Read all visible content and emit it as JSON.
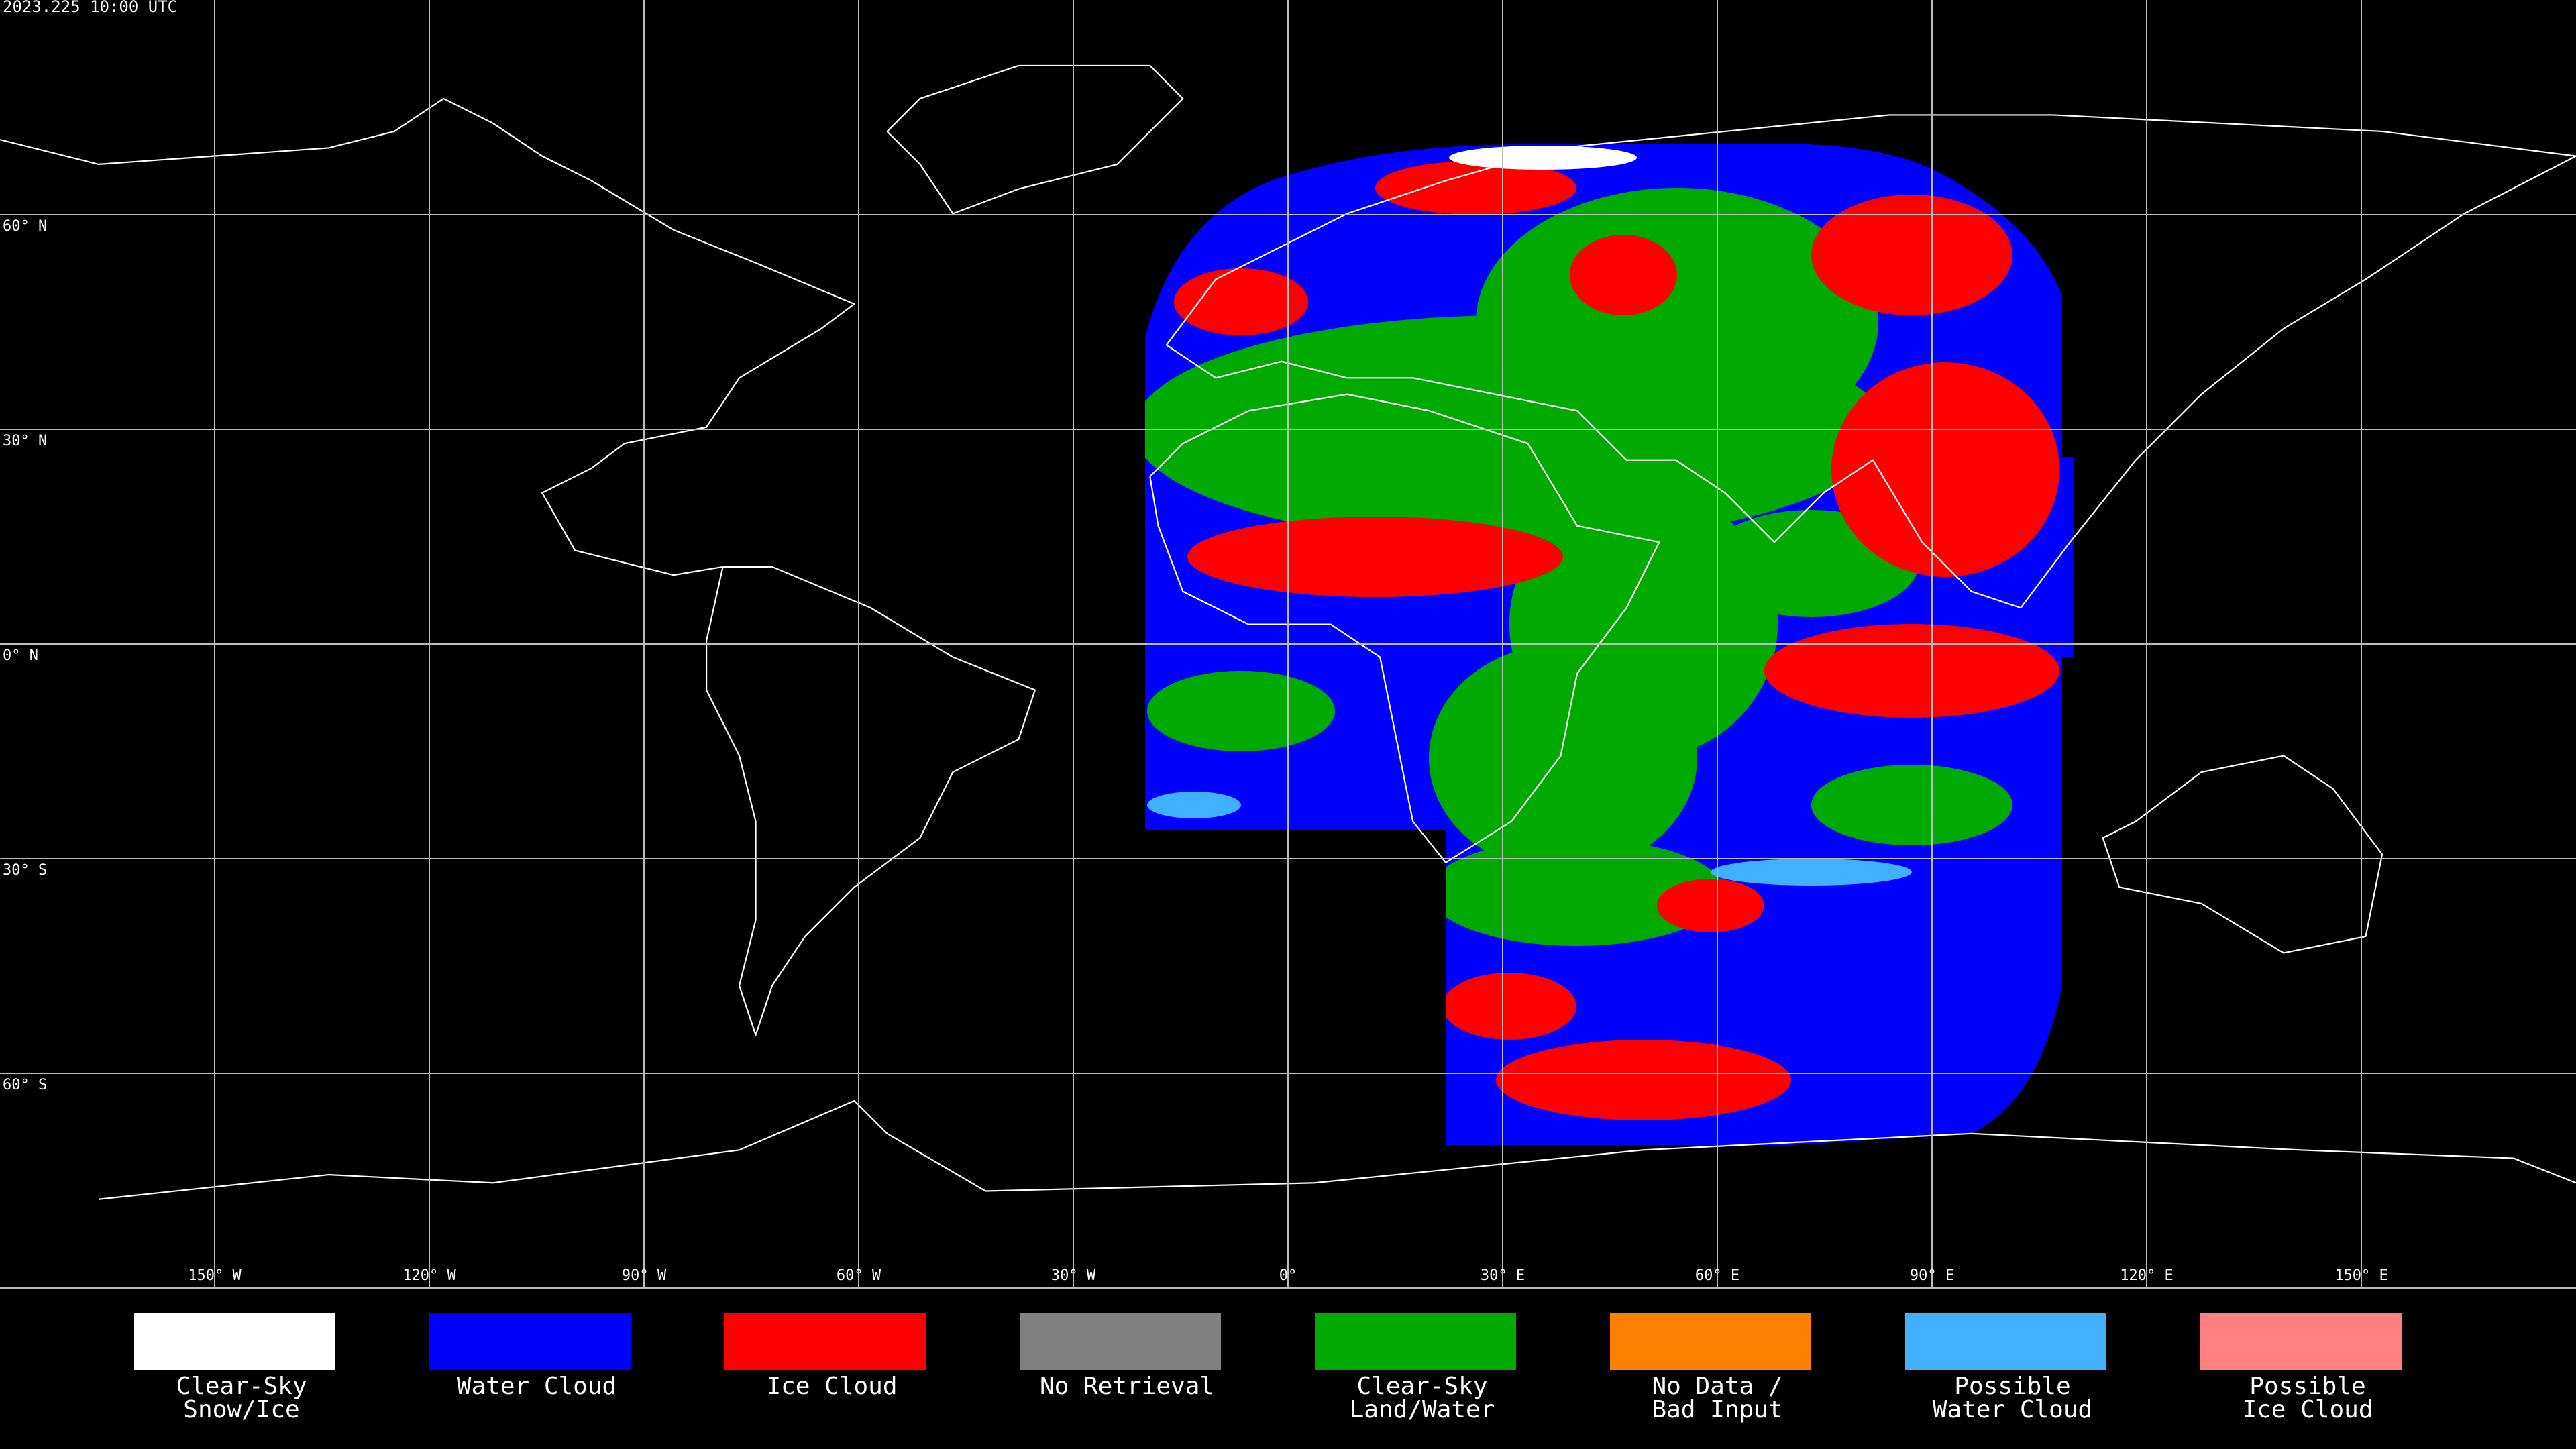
{
  "map": {
    "title": "2023.225 10:00 UTC",
    "lon_ticks": [
      {
        "value": -150,
        "label": "150° W"
      },
      {
        "value": -120,
        "label": "120° W"
      },
      {
        "value": -90,
        "label": "90° W"
      },
      {
        "value": -60,
        "label": "60° W"
      },
      {
        "value": -30,
        "label": "30° W"
      },
      {
        "value": 0,
        "label": "0°"
      },
      {
        "value": 30,
        "label": "30° E"
      },
      {
        "value": 60,
        "label": "60° E"
      },
      {
        "value": 90,
        "label": "90° E"
      },
      {
        "value": 120,
        "label": "120° E"
      },
      {
        "value": 150,
        "label": "150° E"
      }
    ],
    "lat_ticks": [
      {
        "value": 60,
        "label": "60° N"
      },
      {
        "value": 30,
        "label": "30° N"
      },
      {
        "value": 0,
        "label": "0° N"
      },
      {
        "value": -30,
        "label": "30° S"
      },
      {
        "value": -60,
        "label": "60° S"
      }
    ]
  },
  "legend": {
    "items": [
      {
        "label": [
          "Clear-Sky",
          "Snow/Ice"
        ],
        "color": "#ffffff"
      },
      {
        "label": [
          "Water Cloud"
        ],
        "color": "#0000ff"
      },
      {
        "label": [
          "Ice Cloud"
        ],
        "color": "#ff0000"
      },
      {
        "label": [
          "No Retrieval"
        ],
        "color": "#808080"
      },
      {
        "label": [
          "Clear-Sky",
          "Land/Water"
        ],
        "color": "#00aa00"
      },
      {
        "label": [
          "No Data /",
          "Bad Input"
        ],
        "color": "#ff8000"
      },
      {
        "label": [
          "Possible",
          "Water Cloud"
        ],
        "color": "#40b0ff"
      },
      {
        "label": [
          "Possible",
          "Ice Cloud"
        ],
        "color": "#ff8080"
      }
    ]
  }
}
